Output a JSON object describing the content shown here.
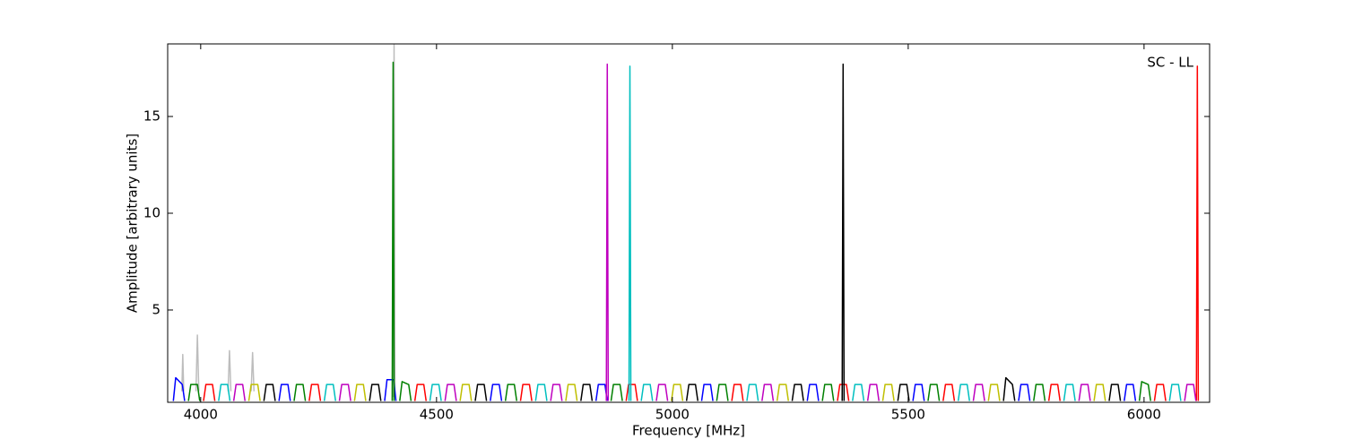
{
  "chart_data": {
    "type": "line",
    "annotation": "SC - LL",
    "x_label": "Frequency [MHz]",
    "y_label": "Amplitude [arbitrary units]",
    "xlim": [
      3930,
      6139
    ],
    "ylim": [
      0.23,
      18.75
    ],
    "xticks": [
      4000,
      4500,
      5000,
      5500,
      6000
    ],
    "yticks": [
      5,
      10,
      15
    ],
    "series": [
      {
        "color": "#bdbdbd",
        "x": [
          3960,
          3962,
          3964,
          3965,
          3990,
          3993,
          3996,
          3997,
          4058,
          4061,
          4064,
          4065,
          4107,
          4110,
          4113,
          4114,
          4408,
          4410,
          4412
        ],
        "values": [
          0.8,
          2.7,
          0.8,
          null,
          0.8,
          3.7,
          0.8,
          null,
          0.8,
          2.9,
          0.8,
          null,
          0.8,
          2.8,
          0.8,
          null,
          0.5,
          18.7,
          0.5
        ]
      },
      {
        "color": "#0000ff",
        "x": [
          3942,
          3947,
          3961,
          3966,
          3967,
          4166,
          4171,
          4185,
          4190,
          4191,
          4390,
          4395,
          4409,
          4414,
          4415,
          4614,
          4619,
          4633,
          4638,
          4639,
          4838,
          4843,
          4857,
          4862,
          4863,
          5062,
          5067,
          5081,
          5086,
          5087,
          5286,
          5291,
          5305,
          5310,
          5311,
          5510,
          5515,
          5529,
          5534,
          5535,
          5734,
          5739,
          5753,
          5758,
          5759,
          5958,
          5963,
          5977,
          5982,
          5983
        ],
        "values": [
          0.3,
          1.5,
          1.15,
          0.3,
          null,
          0.3,
          1.15,
          1.15,
          0.3,
          null,
          0.3,
          1.4,
          1.4,
          0.3,
          null,
          0.3,
          1.15,
          1.15,
          0.3,
          null,
          0.3,
          1.15,
          1.15,
          0.3,
          null,
          0.3,
          1.15,
          1.15,
          0.3,
          null,
          0.3,
          1.15,
          1.15,
          0.3,
          null,
          0.3,
          1.15,
          1.15,
          0.3,
          null,
          0.3,
          1.15,
          1.15,
          0.3,
          null,
          0.3,
          1.15,
          1.15,
          0.3,
          null
        ]
      },
      {
        "color": "#008000",
        "x": [
          3974,
          3979,
          3993,
          3998,
          3999,
          4198,
          4203,
          4217,
          4222,
          4223,
          4406,
          4408,
          4410,
          4411,
          4422,
          4427,
          4441,
          4446,
          4447,
          4646,
          4651,
          4665,
          4670,
          4671,
          4870,
          4875,
          4889,
          4894,
          4895,
          5094,
          5099,
          5113,
          5118,
          5119,
          5318,
          5323,
          5337,
          5342,
          5343,
          5542,
          5547,
          5561,
          5566,
          5567,
          5766,
          5771,
          5785,
          5790,
          5791,
          5990,
          5995,
          6009,
          6014,
          6015
        ],
        "values": [
          0.3,
          1.15,
          1.15,
          0.3,
          null,
          0.3,
          1.15,
          1.15,
          0.3,
          null,
          0.3,
          17.8,
          0.3,
          null,
          0.3,
          1.3,
          1.15,
          0.3,
          null,
          0.3,
          1.15,
          1.15,
          0.3,
          null,
          0.3,
          1.15,
          1.15,
          0.3,
          null,
          0.3,
          1.15,
          1.15,
          0.3,
          null,
          0.3,
          1.15,
          1.15,
          0.3,
          null,
          0.3,
          1.15,
          1.15,
          0.3,
          null,
          0.3,
          1.15,
          1.15,
          0.3,
          null,
          0.3,
          1.3,
          1.15,
          0.3,
          null
        ]
      },
      {
        "color": "#ff0000",
        "x": [
          4006,
          4011,
          4025,
          4030,
          4031,
          4230,
          4235,
          4249,
          4254,
          4255,
          4454,
          4459,
          4473,
          4478,
          4479,
          4678,
          4683,
          4697,
          4702,
          4703,
          4902,
          4907,
          4921,
          4926,
          4927,
          5126,
          5131,
          5145,
          5150,
          5151,
          5350,
          5355,
          5369,
          5374,
          5375,
          5574,
          5579,
          5593,
          5598,
          5599,
          5798,
          5803,
          5817,
          5822,
          5823,
          6022,
          6027,
          6041,
          6046,
          6047,
          6111,
          6113,
          6115
        ],
        "values": [
          0.3,
          1.15,
          1.15,
          0.3,
          null,
          0.3,
          1.15,
          1.15,
          0.3,
          null,
          0.3,
          1.15,
          1.15,
          0.3,
          null,
          0.3,
          1.15,
          1.15,
          0.3,
          null,
          0.3,
          1.15,
          1.15,
          0.3,
          null,
          0.3,
          1.15,
          1.15,
          0.3,
          null,
          0.3,
          1.15,
          1.15,
          0.3,
          null,
          0.3,
          1.15,
          1.15,
          0.3,
          null,
          0.3,
          1.15,
          1.15,
          0.3,
          null,
          0.3,
          1.15,
          1.15,
          0.3,
          null,
          0.3,
          17.6,
          0.3
        ]
      },
      {
        "color": "#00bfbf",
        "x": [
          4038,
          4043,
          4057,
          4062,
          4063,
          4262,
          4267,
          4281,
          4286,
          4287,
          4486,
          4491,
          4505,
          4510,
          4511,
          4710,
          4715,
          4729,
          4734,
          4735,
          4908,
          4910,
          4912,
          4913,
          4934,
          4939,
          4953,
          4958,
          4959,
          5158,
          5163,
          5177,
          5182,
          5183,
          5382,
          5387,
          5401,
          5406,
          5407,
          5606,
          5611,
          5625,
          5630,
          5631,
          5830,
          5835,
          5849,
          5854,
          5855,
          6054,
          6059,
          6073,
          6078
        ],
        "values": [
          0.3,
          1.15,
          1.15,
          0.3,
          null,
          0.3,
          1.15,
          1.15,
          0.3,
          null,
          0.3,
          1.15,
          1.15,
          0.3,
          null,
          0.3,
          1.15,
          1.15,
          0.3,
          null,
          0.3,
          17.6,
          0.3,
          null,
          0.3,
          1.15,
          1.15,
          0.3,
          null,
          0.3,
          1.15,
          1.15,
          0.3,
          null,
          0.3,
          1.15,
          1.15,
          0.3,
          null,
          0.3,
          1.15,
          1.15,
          0.3,
          null,
          0.3,
          1.15,
          1.15,
          0.3,
          null,
          0.3,
          1.15,
          1.15,
          0.3
        ]
      },
      {
        "color": "#bf00bf",
        "x": [
          4070,
          4075,
          4089,
          4094,
          4095,
          4294,
          4299,
          4313,
          4318,
          4319,
          4518,
          4523,
          4537,
          4542,
          4543,
          4742,
          4747,
          4761,
          4766,
          4767,
          4860,
          4862,
          4864,
          4865,
          4966,
          4971,
          4985,
          4990,
          4991,
          5190,
          5195,
          5209,
          5214,
          5215,
          5414,
          5419,
          5433,
          5438,
          5439,
          5638,
          5643,
          5657,
          5662,
          5663,
          5862,
          5867,
          5881,
          5886,
          5887,
          6086,
          6091,
          6105,
          6110
        ],
        "values": [
          0.3,
          1.15,
          1.15,
          0.3,
          null,
          0.3,
          1.15,
          1.15,
          0.3,
          null,
          0.3,
          1.15,
          1.15,
          0.3,
          null,
          0.3,
          1.15,
          1.15,
          0.3,
          null,
          0.3,
          17.7,
          0.3,
          null,
          0.3,
          1.15,
          1.15,
          0.3,
          null,
          0.3,
          1.15,
          1.15,
          0.3,
          null,
          0.3,
          1.15,
          1.15,
          0.3,
          null,
          0.3,
          1.15,
          1.15,
          0.3,
          null,
          0.3,
          1.15,
          1.15,
          0.3,
          null,
          0.3,
          1.15,
          1.15,
          0.3
        ]
      },
      {
        "color": "#bfbf00",
        "x": [
          4102,
          4107,
          4121,
          4126,
          4127,
          4326,
          4331,
          4345,
          4350,
          4351,
          4550,
          4555,
          4569,
          4574,
          4575,
          4774,
          4779,
          4793,
          4798,
          4799,
          4998,
          5003,
          5017,
          5022,
          5023,
          5222,
          5227,
          5241,
          5246,
          5247,
          5446,
          5451,
          5465,
          5470,
          5471,
          5670,
          5675,
          5689,
          5694,
          5695,
          5894,
          5899,
          5913,
          5918
        ],
        "values": [
          0.3,
          1.15,
          1.15,
          0.3,
          null,
          0.3,
          1.15,
          1.15,
          0.3,
          null,
          0.3,
          1.15,
          1.15,
          0.3,
          null,
          0.3,
          1.15,
          1.15,
          0.3,
          null,
          0.3,
          1.15,
          1.15,
          0.3,
          null,
          0.3,
          1.15,
          1.15,
          0.3,
          null,
          0.3,
          1.15,
          1.15,
          0.3,
          null,
          0.3,
          1.15,
          1.15,
          0.3,
          null,
          0.3,
          1.15,
          1.15,
          0.3
        ]
      },
      {
        "color": "#000000",
        "x": [
          4134,
          4139,
          4153,
          4158,
          4159,
          4358,
          4363,
          4377,
          4382,
          4383,
          4582,
          4587,
          4601,
          4606,
          4607,
          4806,
          4811,
          4825,
          4830,
          4831,
          5030,
          5035,
          5049,
          5054,
          5055,
          5254,
          5259,
          5273,
          5278,
          5279,
          5360,
          5362,
          5364,
          5365,
          5478,
          5483,
          5497,
          5502,
          5503,
          5702,
          5707,
          5721,
          5726,
          5727,
          5926,
          5931,
          5945,
          5950
        ],
        "values": [
          0.3,
          1.15,
          1.15,
          0.3,
          null,
          0.3,
          1.15,
          1.15,
          0.3,
          null,
          0.3,
          1.15,
          1.15,
          0.3,
          null,
          0.3,
          1.15,
          1.15,
          0.3,
          null,
          0.3,
          1.15,
          1.15,
          0.3,
          null,
          0.3,
          1.15,
          1.15,
          0.3,
          null,
          0.3,
          17.7,
          0.3,
          null,
          0.3,
          1.15,
          1.15,
          0.3,
          null,
          0.3,
          1.5,
          1.15,
          0.3,
          null,
          0.3,
          1.15,
          1.15,
          0.3
        ]
      }
    ]
  }
}
